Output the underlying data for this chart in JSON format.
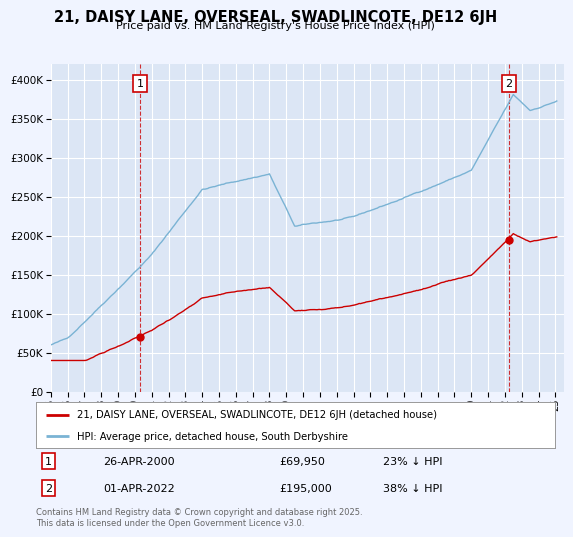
{
  "title": "21, DAISY LANE, OVERSEAL, SWADLINCOTE, DE12 6JH",
  "subtitle": "Price paid vs. HM Land Registry's House Price Index (HPI)",
  "legend_line1": "21, DAISY LANE, OVERSEAL, SWADLINCOTE, DE12 6JH (detached house)",
  "legend_line2": "HPI: Average price, detached house, South Derbyshire",
  "annotation1_date": "26-APR-2000",
  "annotation1_price": "£69,950",
  "annotation1_note": "23% ↓ HPI",
  "annotation2_date": "01-APR-2022",
  "annotation2_price": "£195,000",
  "annotation2_note": "38% ↓ HPI",
  "footer": "Contains HM Land Registry data © Crown copyright and database right 2025.\nThis data is licensed under the Open Government Licence v3.0.",
  "price_color": "#cc0000",
  "hpi_color": "#7ab3d4",
  "background_color": "#f0f4ff",
  "plot_bg_color": "#dce6f5",
  "grid_color": "#ffffff",
  "ylim": [
    0,
    420000
  ],
  "yticks": [
    0,
    50000,
    100000,
    150000,
    200000,
    250000,
    300000,
    350000,
    400000
  ],
  "sale1_x": 2000.32,
  "sale1_y": 69950,
  "sale2_x": 2022.25,
  "sale2_y": 195000,
  "xlim_left": 1995.0,
  "xlim_right": 2025.5,
  "xticks": [
    1995,
    1996,
    1997,
    1998,
    1999,
    2000,
    2001,
    2002,
    2003,
    2004,
    2005,
    2006,
    2007,
    2008,
    2009,
    2010,
    2011,
    2012,
    2013,
    2014,
    2015,
    2016,
    2017,
    2018,
    2019,
    2020,
    2021,
    2022,
    2023,
    2024,
    2025
  ]
}
